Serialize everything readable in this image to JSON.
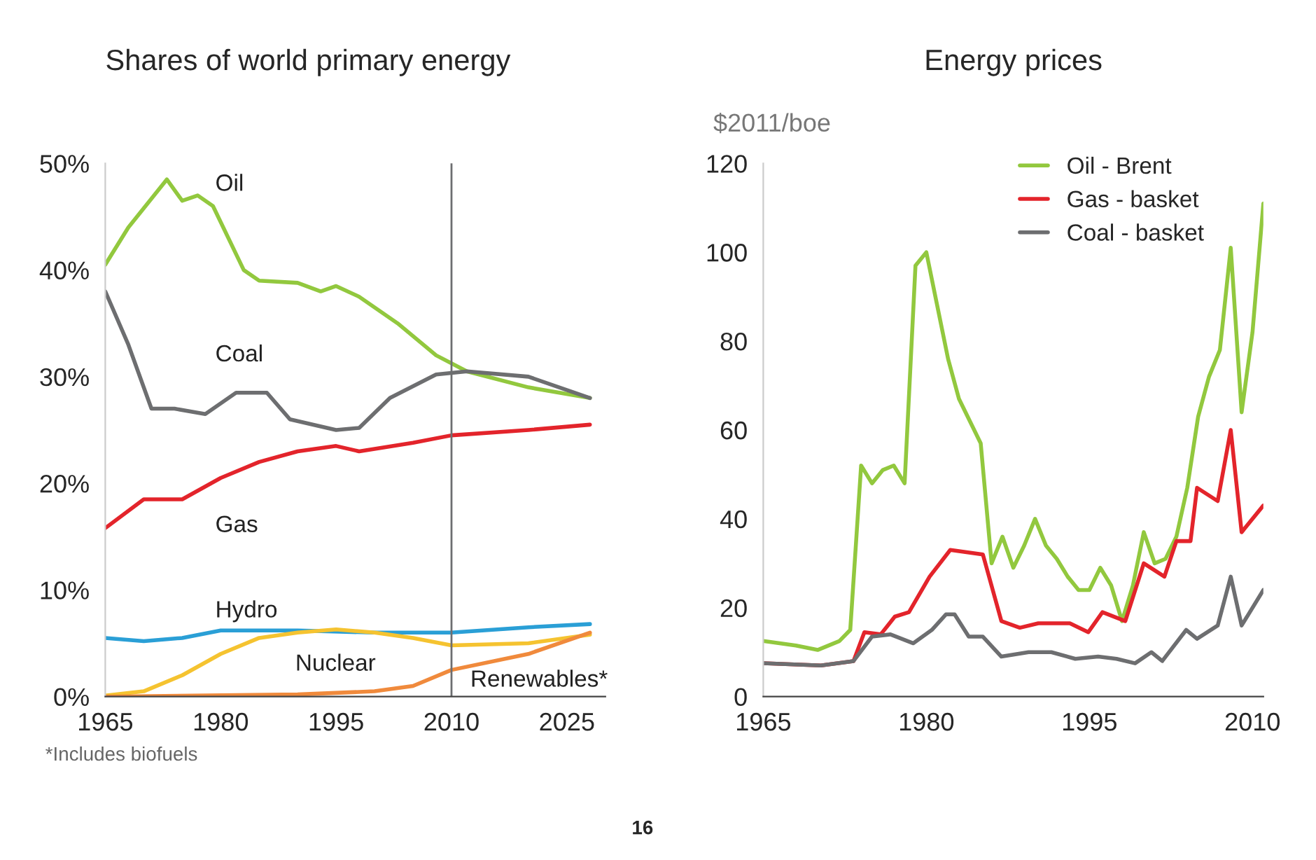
{
  "chart_data": [
    {
      "type": "line",
      "title": "Shares of world primary energy",
      "xlim": [
        1965,
        2030
      ],
      "xticks": [
        1965,
        1980,
        1995,
        2010,
        2025
      ],
      "ylim": [
        0,
        50
      ],
      "yticks": [
        {
          "value": 0,
          "label": "0%"
        },
        {
          "value": 10,
          "label": "10%"
        },
        {
          "value": 20,
          "label": "20%"
        },
        {
          "value": 30,
          "label": "30%"
        },
        {
          "value": 40,
          "label": "40%"
        },
        {
          "value": 50,
          "label": "50%"
        }
      ],
      "grid": false,
      "legend": false,
      "series": [
        {
          "name": "Oil",
          "color": "#92c83e",
          "x": [
            1965,
            1968,
            1973,
            1975,
            1977,
            1979,
            1983,
            1985,
            1990,
            1993,
            1995,
            1998,
            2003,
            2008,
            2012,
            2020,
            2028
          ],
          "values": [
            40.5,
            44,
            48.5,
            46.5,
            47,
            46,
            40,
            39,
            38.8,
            38,
            38.5,
            37.5,
            35,
            32,
            30.5,
            29,
            28
          ]
        },
        {
          "name": "Coal",
          "color": "#6d6e70",
          "x": [
            1965,
            1968,
            1971,
            1974,
            1978,
            1982,
            1986,
            1989,
            1995,
            1998,
            2002,
            2008,
            2012,
            2020,
            2028
          ],
          "values": [
            38,
            33,
            27,
            27,
            26.5,
            28.5,
            28.5,
            26,
            25,
            25.2,
            28,
            30.2,
            30.5,
            30,
            28
          ]
        },
        {
          "name": "Gas",
          "color": "#e3242b",
          "x": [
            1965,
            1970,
            1975,
            1980,
            1985,
            1990,
            1995,
            1998,
            2005,
            2010,
            2020,
            2028
          ],
          "values": [
            15.8,
            18.5,
            18.5,
            20.5,
            22,
            23,
            23.5,
            23,
            23.8,
            24.5,
            25,
            25.5
          ]
        },
        {
          "name": "Hydro",
          "color": "#2a9fd6",
          "x": [
            1965,
            1970,
            1975,
            1980,
            1990,
            2000,
            2010,
            2020,
            2028
          ],
          "values": [
            5.5,
            5.2,
            5.5,
            6.2,
            6.2,
            6,
            6,
            6.5,
            6.8
          ]
        },
        {
          "name": "Nuclear",
          "color": "#f5c330",
          "x": [
            1965,
            1970,
            1975,
            1980,
            1985,
            1990,
            1995,
            2000,
            2005,
            2010,
            2020,
            2028
          ],
          "values": [
            0.1,
            0.5,
            2,
            4,
            5.5,
            6,
            6.3,
            6,
            5.5,
            4.8,
            5,
            5.8
          ]
        },
        {
          "name": "Renewables*",
          "color": "#f08a3c",
          "x": [
            1965,
            1990,
            2000,
            2005,
            2010,
            2020,
            2028
          ],
          "values": [
            0,
            0.2,
            0.5,
            1,
            2.5,
            4,
            6
          ]
        }
      ],
      "ref_lines": [
        {
          "axis": "x",
          "value": 2010,
          "color": "#6d6e70"
        }
      ],
      "annotations": [
        "*Includes biofuels"
      ]
    },
    {
      "type": "line",
      "title": "Energy prices",
      "ylabel": "$2011/boe",
      "xlim": [
        1965,
        2011
      ],
      "xticks": [
        1965,
        1980,
        1995,
        2010
      ],
      "ylim": [
        0,
        120
      ],
      "yticks": [
        0,
        20,
        40,
        60,
        80,
        100,
        120
      ],
      "grid": false,
      "legend": "top right",
      "series": [
        {
          "name": "Oil - Brent",
          "color": "#92c83e",
          "x": [
            1965,
            1968,
            1970,
            1972,
            1973,
            1974,
            1975,
            1976,
            1977,
            1978,
            1979,
            1980,
            1981,
            1982,
            1983,
            1984,
            1985,
            1986,
            1987,
            1988,
            1989,
            1990,
            1991,
            1992,
            1993,
            1994,
            1995,
            1996,
            1997,
            1998,
            1999,
            2000,
            2001,
            2002,
            2003,
            2004,
            2005,
            2006,
            2007,
            2008,
            2009,
            2010,
            2011
          ],
          "values": [
            12.5,
            11.5,
            10.5,
            12.5,
            15,
            52,
            48,
            51,
            52,
            48,
            97,
            100,
            88,
            76,
            67,
            62,
            57,
            30,
            36,
            29,
            34,
            40,
            34,
            31,
            27,
            24,
            24,
            29,
            25,
            17,
            25,
            37,
            30,
            31,
            36,
            47,
            63,
            72,
            78,
            101,
            64,
            82,
            111
          ]
        },
        {
          "name": "Gas - basket",
          "color": "#e3242b",
          "x": [
            1965,
            1970.3,
            1973.3,
            1974.3,
            1975.8,
            1977.1,
            1978.4,
            1980.3,
            1982.2,
            1985.2,
            1986.9,
            1988.6,
            1990.3,
            1993.2,
            1994.9,
            1996.2,
            1998.3,
            2000,
            2001.9,
            2003,
            2004.3,
            2004.9,
            2006.8,
            2008,
            2009,
            2011
          ],
          "values": [
            7.5,
            7,
            8,
            14.5,
            14,
            18,
            19,
            27,
            33,
            32,
            17,
            15.5,
            16.5,
            16.5,
            14.5,
            19,
            17,
            30,
            27,
            35,
            35,
            47,
            44,
            60,
            37,
            43
          ]
        },
        {
          "name": "Coal - basket",
          "color": "#6d6e70",
          "x": [
            1965,
            1970.3,
            1973.3,
            1975,
            1976.7,
            1978.8,
            1980.5,
            1981.8,
            1982.6,
            1983.9,
            1985.2,
            1986.9,
            1989.4,
            1991.5,
            1993.7,
            1995.8,
            1997.5,
            1999.2,
            2000.7,
            2001.7,
            2003.9,
            2004.9,
            2006.8,
            2008,
            2009,
            2011
          ],
          "values": [
            7.5,
            7,
            8,
            13.5,
            14,
            12,
            15,
            18.5,
            18.5,
            13.5,
            13.5,
            9,
            10,
            10,
            8.5,
            9,
            8.5,
            7.5,
            10,
            8,
            15,
            13,
            16,
            27,
            16,
            24
          ]
        }
      ],
      "annotations": [
        "16"
      ]
    }
  ]
}
